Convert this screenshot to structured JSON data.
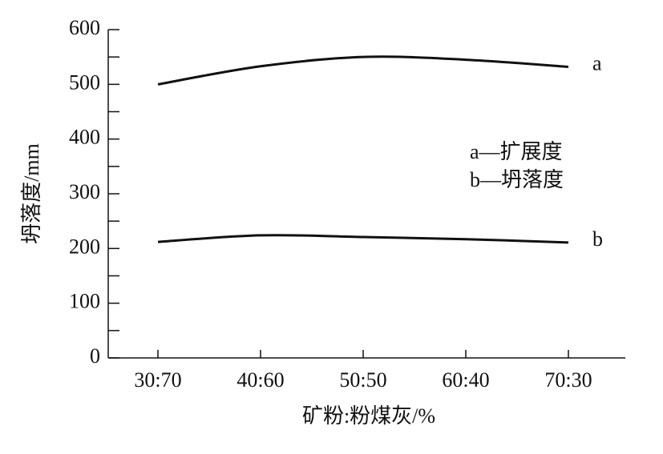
{
  "chart_data": {
    "type": "line",
    "categories": [
      "30:70",
      "40:60",
      "50:50",
      "60:40",
      "70:30"
    ],
    "series": [
      {
        "name": "a",
        "color": "#111111",
        "values": [
          500,
          533,
          550,
          545,
          532
        ]
      },
      {
        "name": "b",
        "color": "#111111",
        "values": [
          212,
          224,
          221,
          217,
          211
        ]
      }
    ],
    "legend_entries": [
      "a—扩展度",
      "b—坍落度"
    ],
    "xlabel": "矿粉:粉煤灰/%",
    "ylabel": "坍落度/mm",
    "ylim": [
      0,
      600
    ],
    "yticks": [
      0,
      100,
      200,
      300,
      400,
      500,
      600
    ],
    "yminorticks": [
      50,
      150,
      250,
      350,
      450,
      550
    ],
    "smooth": true
  }
}
